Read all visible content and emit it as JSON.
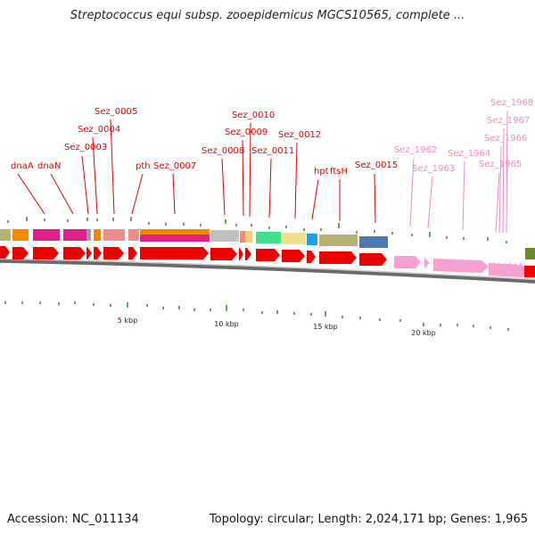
{
  "title": "Streptococcus equi subsp. zooepidemicus MGCS10565, complete ...",
  "accession": "Accession: NC_011134",
  "summary": "Topology: circular; Length: 2,024,171 bp; Genes: 1,965",
  "scale_labels": [
    "5 kbp",
    "10 kbp",
    "15 kbp",
    "20 kbp"
  ],
  "gene_labels": [
    {
      "text": "dnaA",
      "color": "#dd0000"
    },
    {
      "text": "dnaN",
      "color": "#dd0000"
    },
    {
      "text": "Sez_0003",
      "color": "#dd0000"
    },
    {
      "text": "Sez_0004",
      "color": "#dd0000"
    },
    {
      "text": "Sez_0005",
      "color": "#dd0000"
    },
    {
      "text": "pth",
      "color": "#dd0000"
    },
    {
      "text": "Sez_0007",
      "color": "#dd0000"
    },
    {
      "text": "Sez_0008",
      "color": "#dd0000"
    },
    {
      "text": "Sez_0009",
      "color": "#dd0000"
    },
    {
      "text": "Sez_0010",
      "color": "#dd0000"
    },
    {
      "text": "Sez_0011",
      "color": "#dd0000"
    },
    {
      "text": "Sez_0012",
      "color": "#dd0000"
    },
    {
      "text": "hpt",
      "color": "#dd0000"
    },
    {
      "text": "ftsH",
      "color": "#dd0000"
    },
    {
      "text": "Sez_0015",
      "color": "#dd0000"
    },
    {
      "text": "Sez_1962",
      "color": "#ee88c4"
    },
    {
      "text": "Sez_1963",
      "color": "#ee88c4"
    },
    {
      "text": "Sez_1964",
      "color": "#ee88c4"
    },
    {
      "text": "Sez_1965",
      "color": "#ee88c4"
    },
    {
      "text": "Sez_1966",
      "color": "#ee88c4"
    },
    {
      "text": "Sez_1967",
      "color": "#ee88c4"
    },
    {
      "text": "Sez_1968",
      "color": "#ee88c4"
    }
  ],
  "colors": {
    "gene_red": "#ee0000",
    "gene_pink": "#f5a0d0",
    "tick_green": "#2a8a2a",
    "backbone": "#8a8a8a"
  }
}
